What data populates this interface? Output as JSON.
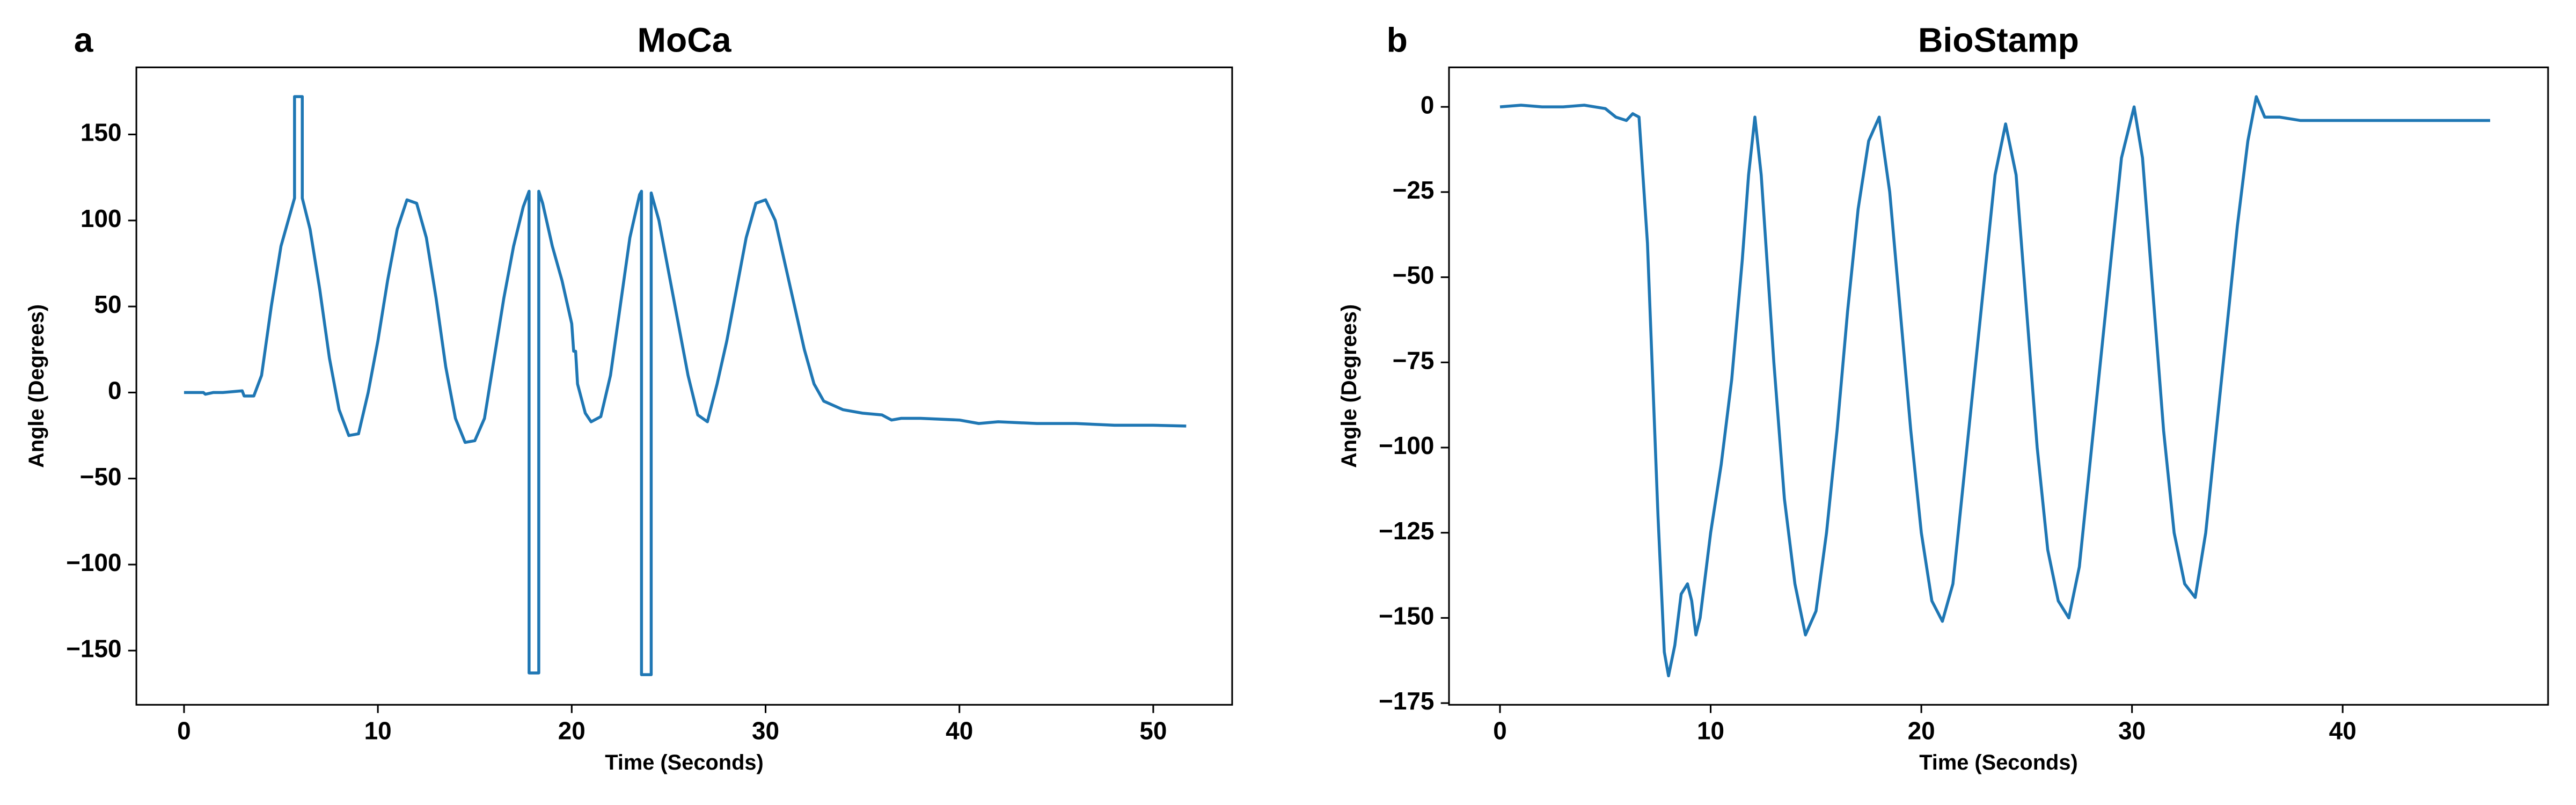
{
  "chart_data": [
    {
      "type": "line",
      "panel_label": "a",
      "title": "MoCa",
      "xlabel": "Time (Seconds)",
      "ylabel": "Angle (Degrees)",
      "x": [
        0,
        1,
        1.1,
        1.5,
        2,
        3,
        3.1,
        3.6,
        3.7,
        4,
        4.5,
        5,
        5.5,
        5.7,
        5.7,
        6.1,
        6.1,
        6.5,
        7,
        7.5,
        8,
        8.5,
        9,
        9.5,
        10,
        10.5,
        11,
        11.5,
        12,
        12.5,
        13,
        13.5,
        14,
        14.5,
        15,
        15.5,
        16,
        16.5,
        17,
        17.5,
        17.8,
        17.8,
        18.3,
        18.3,
        18.5,
        19,
        19.5,
        20,
        20.1,
        20.2,
        20.3,
        20.7,
        21,
        21.5,
        22,
        22.5,
        23,
        23.5,
        23.6,
        23.6,
        24.1,
        24.1,
        24.5,
        25,
        25.5,
        26,
        26.5,
        27,
        27.5,
        28,
        28.5,
        29,
        29.5,
        30,
        30.5,
        31,
        31.5,
        32,
        32.5,
        33,
        34,
        35,
        36,
        36.5,
        37,
        38,
        40,
        41,
        42,
        44,
        46,
        48,
        50,
        51.7
      ],
      "series": [
        {
          "color": "#1f77b4",
          "values": [
            0,
            0,
            -1,
            0,
            0,
            1,
            -2,
            -2,
            1,
            10,
            50,
            85,
            105,
            113,
            172,
            172,
            113,
            95,
            60,
            20,
            -10,
            -25,
            -24,
            0,
            30,
            65,
            95,
            112,
            110,
            90,
            55,
            15,
            -15,
            -29,
            -28,
            -15,
            20,
            55,
            85,
            108,
            117,
            -163,
            -163,
            117,
            110,
            85,
            65,
            40,
            24,
            24,
            5,
            -12,
            -17,
            -14,
            10,
            50,
            90,
            115,
            117,
            -164,
            -164,
            116,
            100,
            70,
            40,
            10,
            -13,
            -17,
            5,
            30,
            60,
            90,
            110,
            112,
            100,
            75,
            50,
            25,
            5,
            -5,
            -10,
            -12,
            -13,
            -16,
            -15,
            -15,
            -16,
            -18,
            -17,
            -18,
            -18,
            -19,
            -19,
            -19.5
          ]
        }
      ],
      "xlim": [
        -2.46,
        54.07
      ],
      "ylim": [
        -181.5,
        189
      ],
      "xticks": [
        0,
        10,
        20,
        30,
        40,
        50
      ],
      "yticks": [
        {
          "value": -150,
          "label": "−150"
        },
        {
          "value": -100,
          "label": "−100"
        },
        {
          "value": -50,
          "label": "−50"
        },
        0,
        50,
        100,
        150
      ]
    },
    {
      "type": "line",
      "panel_label": "b",
      "title": "BioStamp",
      "xlabel": "Time (Seconds)",
      "ylabel": "Angle (Degrees)",
      "x": [
        0,
        1,
        2,
        3,
        4,
        5,
        5.5,
        6,
        6.3,
        6.6,
        7,
        7.5,
        7.8,
        8,
        8.3,
        8.6,
        8.9,
        9.1,
        9.3,
        9.5,
        10,
        10.5,
        11,
        11.5,
        11.8,
        12.1,
        12.4,
        13,
        13.5,
        14,
        14.5,
        15,
        15.5,
        16,
        16.5,
        17,
        17.5,
        18,
        18.5,
        19,
        19.5,
        20,
        20.5,
        21,
        21.5,
        22,
        22.5,
        23,
        23.5,
        24,
        24.5,
        25,
        25.5,
        26,
        26.5,
        27,
        27.5,
        28,
        28.5,
        29,
        29.5,
        30.1,
        30.5,
        31,
        31.5,
        32,
        32.5,
        33,
        33.5,
        34,
        34.5,
        35,
        35.5,
        35.9,
        36.3,
        37,
        38,
        40,
        42,
        44,
        46,
        47
      ],
      "series": [
        {
          "color": "#1f77b4",
          "values": [
            0,
            0.5,
            0,
            0,
            0.5,
            -0.5,
            -3,
            -4,
            -2,
            -3,
            -40,
            -120,
            -160,
            -167,
            -158,
            -143,
            -140,
            -145,
            -155,
            -150,
            -125,
            -105,
            -80,
            -45,
            -20,
            -3,
            -20,
            -75,
            -115,
            -140,
            -155,
            -148,
            -125,
            -95,
            -60,
            -30,
            -10,
            -3,
            -25,
            -60,
            -95,
            -125,
            -145,
            -151,
            -140,
            -110,
            -80,
            -50,
            -20,
            -5,
            -20,
            -60,
            -100,
            -130,
            -145,
            -150,
            -135,
            -105,
            -75,
            -45,
            -15,
            0,
            -15,
            -55,
            -95,
            -125,
            -140,
            -144,
            -125,
            -95,
            -65,
            -35,
            -10,
            3,
            -3,
            -3,
            -4,
            -4,
            -4,
            -4,
            -4,
            -4
          ]
        }
      ],
      "xlim": [
        -2.42,
        49.75
      ],
      "ylim": [
        -175.5,
        11.6
      ],
      "xticks": [
        0,
        10,
        20,
        30,
        40
      ],
      "yticks": [
        {
          "value": -175,
          "label": "−175"
        },
        {
          "value": -150,
          "label": "−150"
        },
        {
          "value": -125,
          "label": "−125"
        },
        {
          "value": -100,
          "label": "−100"
        },
        {
          "value": -75,
          "label": "−75"
        },
        {
          "value": -50,
          "label": "−50"
        },
        {
          "value": -25,
          "label": "−25"
        },
        0
      ]
    }
  ]
}
